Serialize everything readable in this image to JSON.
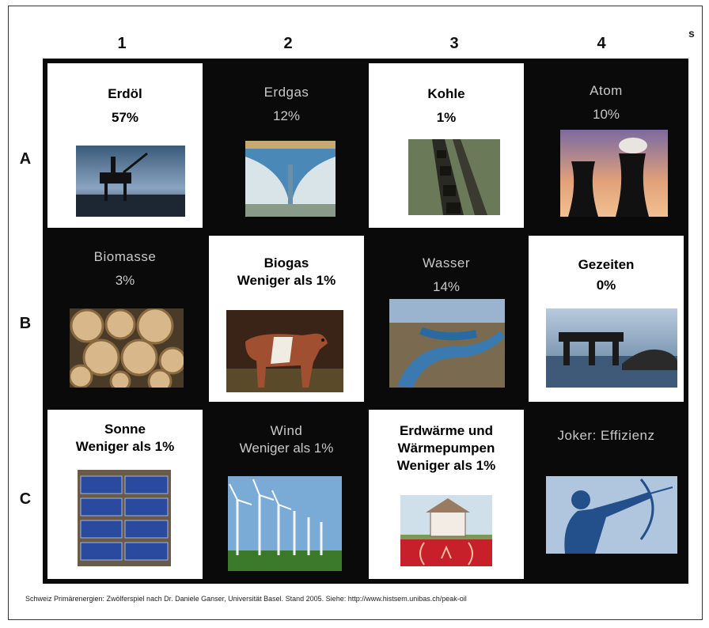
{
  "columns": [
    "1",
    "2",
    "3",
    "4"
  ],
  "rows": [
    "A",
    "B",
    "C"
  ],
  "stray_mark": "s",
  "cells": {
    "a1": {
      "name": "Erdöl",
      "pct": "57%",
      "image": "oil-platform-photo"
    },
    "a2": {
      "name": "Erdgas",
      "pct": "12%",
      "image": "gas-pipeline-photo"
    },
    "a3": {
      "name": "Kohle",
      "pct": "1%",
      "image": "coal-train-photo"
    },
    "a4": {
      "name": "Atom",
      "pct": "10%",
      "image": "cooling-towers-photo"
    },
    "b1": {
      "name": "Biomasse",
      "pct": "3%",
      "image": "log-pile-photo"
    },
    "b2": {
      "name": "Biogas",
      "pct": "Weniger als 1%",
      "image": "cow-photo"
    },
    "b3": {
      "name": "Wasser",
      "pct": "14%",
      "image": "dam-reservoir-photo"
    },
    "b4": {
      "name": "Gezeiten",
      "pct": "0%",
      "image": "tidal-plant-photo"
    },
    "c1": {
      "name": "Sonne",
      "pct": "Weniger als 1%",
      "image": "solar-panels-photo"
    },
    "c2": {
      "name": "Wind",
      "pct": "Weniger als 1%",
      "image": "wind-turbines-photo"
    },
    "c3": {
      "line1": "Erdwärme und",
      "line2": "Wärmepumpen",
      "line3": "Weniger als 1%",
      "image": "geothermal-house-photo"
    },
    "c4": {
      "name": "Joker: Effizienz",
      "image": "archer-silhouette-photo"
    }
  },
  "footnote": "Schweiz Primärenergien: Zwölferspiel nach Dr. Daniele Ganser, Universität Basel. Stand 2005. Siehe: http://www.histsem.unibas.ch/peak-oil",
  "colors": {
    "board": "#0a0a0a",
    "light_cell": "#ffffff",
    "dark_text": "#c8c8c8"
  }
}
